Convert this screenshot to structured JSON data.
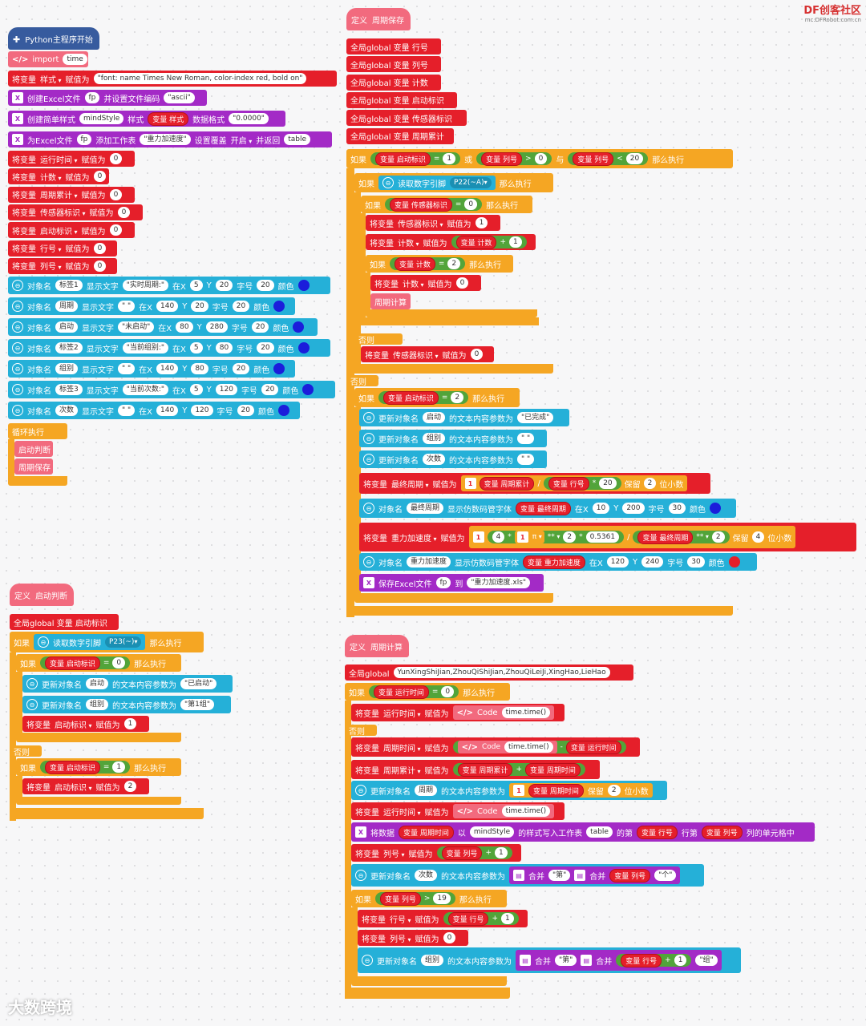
{
  "logo": {
    "brand": "DF创客社区",
    "url": "mc.DFRobot.com.cn"
  },
  "watermark": "大数跨境",
  "main": {
    "start": "Python主程序开始",
    "import_label": "import",
    "import_val": "time",
    "set_style": {
      "a": "将变量",
      "var": "样式",
      "b": "赋值为",
      "val": "\"font: name Times New Roman, color-index red, bold on\""
    },
    "create_excel": {
      "a": "创建Excel文件",
      "fp": "fp",
      "b": "并设置文件编码",
      "val": "\"ascii\""
    },
    "create_style": {
      "a": "创建简单样式",
      "name": "mindStyle",
      "b": "样式",
      "var": "变量 样式",
      "c": "数据格式",
      "val": "\"0.0000\""
    },
    "add_sheet": {
      "a": "为Excel文件",
      "fp": "fp",
      "b": "添加工作表",
      "val": "\"重力加速度\"",
      "c": "设置覆盖",
      "d": "开启",
      "e": "并返回",
      "ret": "table"
    },
    "assigns": [
      {
        "a": "将变量",
        "var": "运行时间",
        "b": "赋值为",
        "val": "0"
      },
      {
        "a": "将变量",
        "var": "计数",
        "b": "赋值为",
        "val": "0"
      },
      {
        "a": "将变量",
        "var": "周期累计",
        "b": "赋值为",
        "val": "0"
      },
      {
        "a": "将变量",
        "var": "传感器标识",
        "b": "赋值为",
        "val": "0"
      },
      {
        "a": "将变量",
        "var": "启动标识",
        "b": "赋值为",
        "val": "0"
      },
      {
        "a": "将变量",
        "var": "行号",
        "b": "赋值为",
        "val": "0"
      },
      {
        "a": "将变量",
        "var": "列号",
        "b": "赋值为",
        "val": "0"
      }
    ],
    "displays": [
      {
        "obj": "标签1",
        "text": "\"实时周期:\"",
        "x": "5",
        "y": "20",
        "size": "20"
      },
      {
        "obj": "周期",
        "text": "\" \"",
        "x": "140",
        "y": "20",
        "size": "20"
      },
      {
        "obj": "启动",
        "text": "\"未启动\"",
        "x": "80",
        "y": "280",
        "size": "20"
      },
      {
        "obj": "标签2",
        "text": "\"当前组别:\"",
        "x": "5",
        "y": "80",
        "size": "20"
      },
      {
        "obj": "组别",
        "text": "\" \"",
        "x": "140",
        "y": "80",
        "size": "20"
      },
      {
        "obj": "标签3",
        "text": "\"当前次数:\"",
        "x": "5",
        "y": "120",
        "size": "20"
      },
      {
        "obj": "次数",
        "text": "\" \"",
        "x": "140",
        "y": "120",
        "size": "20"
      }
    ],
    "disp_words": {
      "obj": "对象名",
      "show": "显示文字",
      "atx": "在X",
      "y": "Y",
      "size": "字号",
      "color": "颜色"
    },
    "loop": "循环执行",
    "call1": "启动判断",
    "call2": "周期保存"
  },
  "save": {
    "def": "定义",
    "name": "周期保存",
    "globals": [
      "全局global  变量 行号",
      "全局global  变量 列号",
      "全局global  变量 计数",
      "全局global  变量 启动标识",
      "全局global  变量 传感器标识",
      "全局global  变量 周期累计"
    ],
    "if1": {
      "kw": "如果",
      "v1": "变量 启动标识",
      "eq": "=",
      "n1": "1",
      "or": "或",
      "v2": "变量 列号",
      "gt": ">",
      "n2": "0",
      "and": "与",
      "v3": "变量 列号",
      "lt": "<",
      "n3": "20",
      "then": "那么执行"
    },
    "if2": {
      "kw": "如果",
      "read": "读取数字引脚",
      "pin": "P22(~A)",
      "then": "那么执行"
    },
    "if3": {
      "kw": "如果",
      "v": "变量 传感器标识",
      "eq": "=",
      "n": "0",
      "then": "那么执行"
    },
    "s1": {
      "a": "将变量",
      "var": "传感器标识",
      "b": "赋值为",
      "val": "1"
    },
    "s2": {
      "a": "将变量",
      "var": "计数",
      "b": "赋值为",
      "v": "变量 计数",
      "op": "+",
      "n": "1"
    },
    "if4": {
      "kw": "如果",
      "v": "变量 计数",
      "eq": "=",
      "n": "2",
      "then": "那么执行"
    },
    "s3": {
      "a": "将变量",
      "var": "计数",
      "b": "赋值为",
      "val": "0"
    },
    "call": "周期计算",
    "else1": "否则",
    "s4": {
      "a": "将变量",
      "var": "传感器标识",
      "b": "赋值为",
      "val": "0"
    },
    "else2": "否则",
    "if5": {
      "kw": "如果",
      "v": "变量 启动标识",
      "eq": "=",
      "n": "2",
      "then": "那么执行"
    },
    "updates": [
      {
        "obj": "启动",
        "val": "\"已完成\""
      },
      {
        "obj": "组别",
        "val": "\" \""
      },
      {
        "obj": "次数",
        "val": "\" \""
      }
    ],
    "upd_words": {
      "a": "更新对象名",
      "b": "的文本内容参数为"
    },
    "s5": {
      "a": "将变量",
      "var": "最终周期",
      "b": "赋值为",
      "n1": "1",
      "v1": "变量 周期累计",
      "div": "/",
      "v2": "变量 行号",
      "mul": "*",
      "n2": "20",
      "keep": "保留",
      "n3": "2",
      "dec": "位小数"
    },
    "d1": {
      "a": "对象名",
      "obj": "最终周期",
      "b": "显示仿数码管字体",
      "v": "变量 最终周期",
      "x": "10",
      "y": "200",
      "size": "30"
    },
    "s6": {
      "a": "将变量",
      "var": "重力加速度",
      "b": "赋值为",
      "n1": "1",
      "four": "4",
      "mul": "*",
      "n2": "1",
      "pi": "π",
      "pow": "**",
      "two": "2",
      "k": "0.5361",
      "div": "/",
      "v": "变量 最终周期",
      "pow2": "**",
      "two2": "2",
      "keep": "保留",
      "n3": "4",
      "dec": "位小数"
    },
    "d2": {
      "a": "对象名",
      "obj": "重力加速度",
      "b": "显示仿数码管字体",
      "v": "变量 重力加速度",
      "x": "120",
      "y": "240",
      "size": "30"
    },
    "savexls": {
      "a": "保存Excel文件",
      "fp": "fp",
      "b": "到",
      "val": "\"重力加速度.xls\""
    }
  },
  "judge": {
    "def": "定义",
    "name": "启动判断",
    "global": "全局global  变量 启动标识",
    "if1": {
      "kw": "如果",
      "read": "读取数字引脚",
      "pin": "P23(~)",
      "then": "那么执行"
    },
    "if2": {
      "kw": "如果",
      "v": "变量 启动标识",
      "eq": "=",
      "n": "0",
      "then": "那么执行"
    },
    "u1": {
      "obj": "启动",
      "val": "\"已启动\""
    },
    "u2": {
      "obj": "组别",
      "val": "\"第1组\""
    },
    "s1": {
      "a": "将变量",
      "var": "启动标识",
      "b": "赋值为",
      "val": "1"
    },
    "else": "否则",
    "if3": {
      "kw": "如果",
      "v": "变量 启动标识",
      "eq": "=",
      "n": "1",
      "then": "那么执行"
    },
    "s2": {
      "a": "将变量",
      "var": "启动标识",
      "b": "赋值为",
      "val": "2"
    }
  },
  "calc": {
    "def": "定义",
    "name": "周期计算",
    "global": "全局global",
    "gval": "YunXingShiJian,ZhouQiShiJian,ZhouQiLeiJi,XingHao,LieHao",
    "if1": {
      "kw": "如果",
      "v": "变量 运行时间",
      "eq": "=",
      "n": "0",
      "then": "那么执行"
    },
    "s1": {
      "a": "将变量",
      "var": "运行时间",
      "b": "赋值为",
      "code": "Code",
      "cv": "time.time()"
    },
    "else": "否则",
    "s2": {
      "a": "将变量",
      "var": "周期时间",
      "b": "赋值为",
      "code": "Code",
      "cv": "time.time()",
      "op": "-",
      "v": "变量 运行时间"
    },
    "s3": {
      "a": "将变量",
      "var": "周期累计",
      "b": "赋值为",
      "v1": "变量 周期累计",
      "op": "+",
      "v2": "变量 周期时间"
    },
    "u1": {
      "a": "更新对象名",
      "obj": "周期",
      "b": "的文本内容参数为",
      "n": "1",
      "v": "变量 周期时间",
      "keep": "保留",
      "n2": "2",
      "dec": "位小数"
    },
    "s4": {
      "a": "将变量",
      "var": "运行时间",
      "b": "赋值为",
      "code": "Code",
      "cv": "time.time()"
    },
    "w": {
      "a": "将数据",
      "v": "变量 周期时间",
      "b": "以",
      "style": "mindStyle",
      "c": "的样式写入工作表",
      "t": "table",
      "d": "的第",
      "v2": "变量 行号",
      "e": "行第",
      "v3": "变量 列号",
      "f": "列的单元格中"
    },
    "s5": {
      "a": "将变量",
      "var": "列号",
      "b": "赋值为",
      "v": "变量 列号",
      "op": "+",
      "n": "1"
    },
    "u2": {
      "a": "更新对象名",
      "obj": "次数",
      "b": "的文本内容参数为",
      "m1": "合并",
      "q1": "\"第\"",
      "m2": "合并",
      "v": "变量 列号",
      "q2": "\"个\""
    },
    "if2": {
      "kw": "如果",
      "v": "变量 列号",
      "gt": ">",
      "n": "19",
      "then": "那么执行"
    },
    "s6": {
      "a": "将变量",
      "var": "行号",
      "b": "赋值为",
      "v": "变量 行号",
      "op": "+",
      "n": "1"
    },
    "s7": {
      "a": "将变量",
      "var": "列号",
      "b": "赋值为",
      "val": "0"
    },
    "u3": {
      "a": "更新对象名",
      "obj": "组别",
      "b": "的文本内容参数为",
      "m1": "合并",
      "q1": "\"第\"",
      "m2": "合并",
      "v": "变量 行号",
      "op": "+",
      "n": "1",
      "q2": "\"组\""
    }
  }
}
